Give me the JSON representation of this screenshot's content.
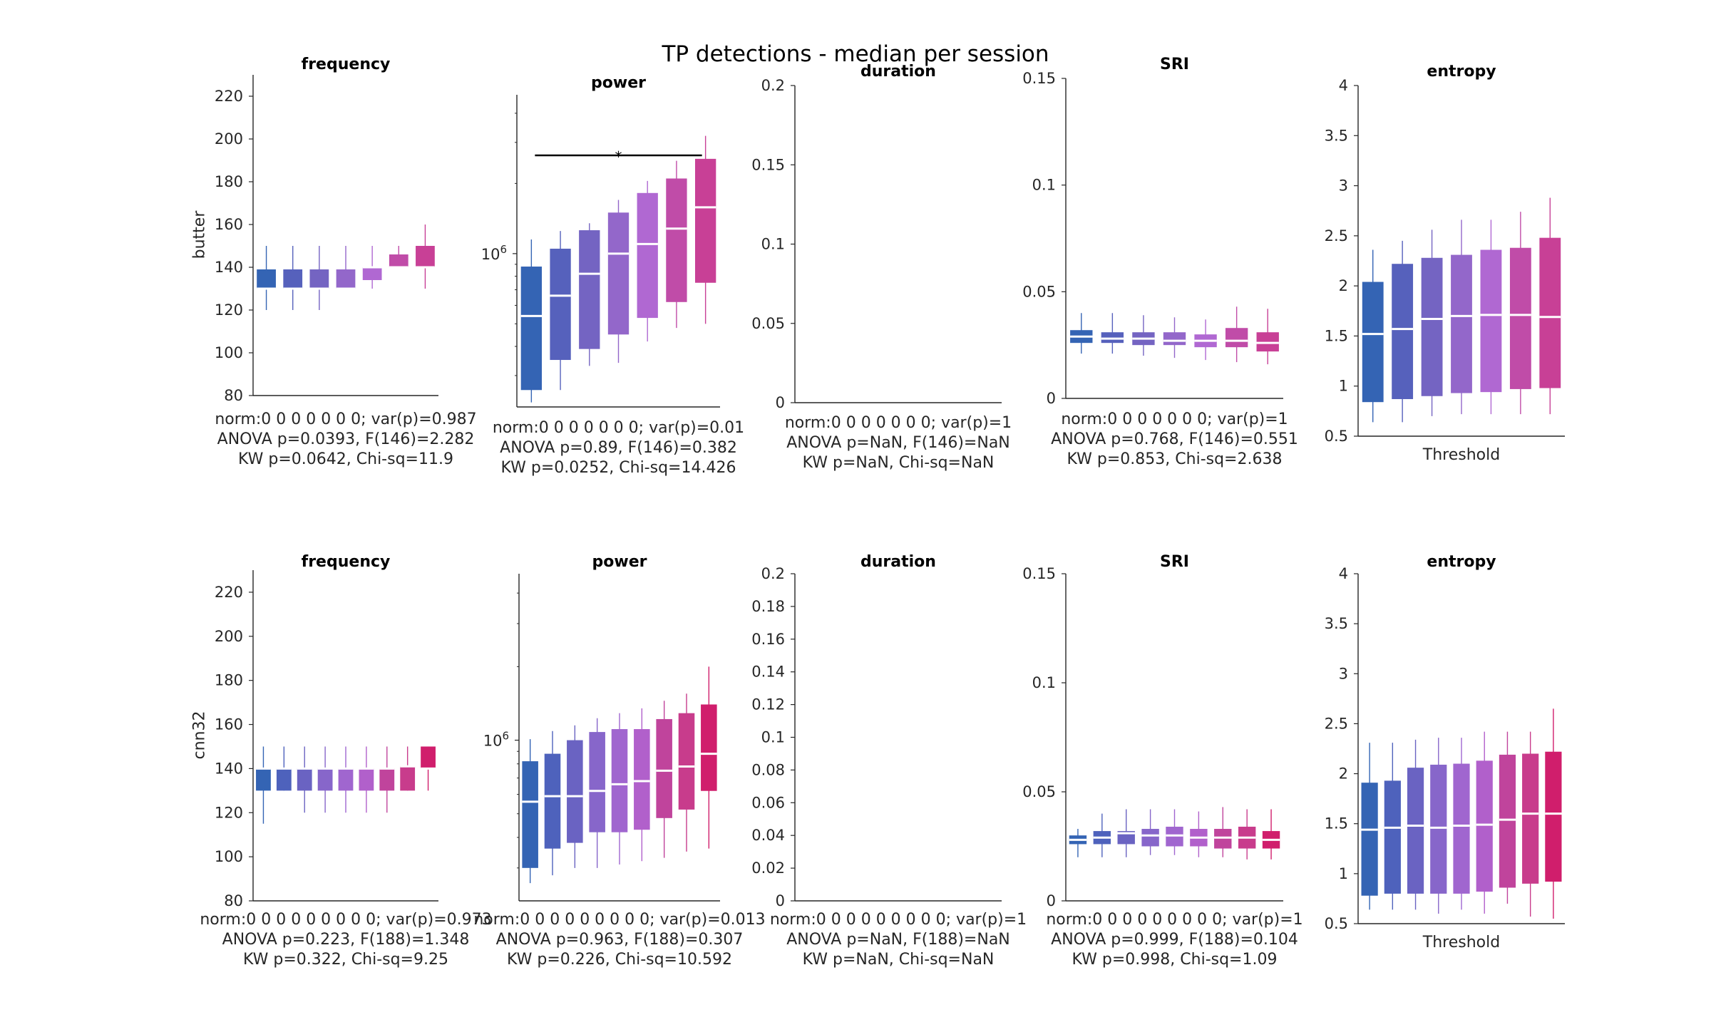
{
  "title": "TP detections - median per session",
  "rows": [
    {
      "label": "butter",
      "panels": [
        {
          "key": "frequency",
          "title": "frequency",
          "stats": [
            "norm:0  0  0  0  0  0  0; var(p)=0.987",
            "ANOVA p=0.0393, F(146)=2.282",
            "KW p=0.0642, Chi-sq=11.9"
          ]
        },
        {
          "key": "power",
          "title": "power",
          "stats": [
            "norm:0  0  0  0  0  0  0; var(p)=0.01",
            "ANOVA p=0.89, F(146)=0.382",
            "KW p=0.0252, Chi-sq=14.426"
          ],
          "significance": "*"
        },
        {
          "key": "duration",
          "title": "duration",
          "stats": [
            "norm:0  0  0  0  0  0  0; var(p)=1",
            "ANOVA p=NaN, F(146)=NaN",
            "KW p=NaN, Chi-sq=NaN"
          ]
        },
        {
          "key": "sri",
          "title": "SRI",
          "stats": [
            "norm:0  0  0  0  0  0  0; var(p)=1",
            "ANOVA p=0.768, F(146)=0.551",
            "KW p=0.853, Chi-sq=2.638"
          ]
        },
        {
          "key": "entropy",
          "title": "entropy",
          "xlabel": "Threshold",
          "stats": []
        }
      ]
    },
    {
      "label": "cnn32",
      "panels": [
        {
          "key": "frequency",
          "title": "frequency",
          "stats": [
            "norm:0  0  0  0  0  0  0  0  0; var(p)=0.973",
            "ANOVA p=0.223, F(188)=1.348",
            "KW p=0.322, Chi-sq=9.25"
          ]
        },
        {
          "key": "power",
          "title": "power",
          "stats": [
            "norm:0  0  0  0  0  0  0  0  0; var(p)=0.013",
            "ANOVA p=0.963, F(188)=0.307",
            "KW p=0.226, Chi-sq=10.592"
          ]
        },
        {
          "key": "duration",
          "title": "duration",
          "stats": [
            "norm:0  0  0  0  0  0  0  0  0; var(p)=1",
            "ANOVA p=NaN, F(188)=NaN",
            "KW p=NaN, Chi-sq=NaN"
          ]
        },
        {
          "key": "sri",
          "title": "SRI",
          "stats": [
            "norm:0  0  0  0  0  0  0  0  0; var(p)=1",
            "ANOVA p=0.999, F(188)=0.104",
            "KW p=0.998, Chi-sq=1.09"
          ]
        },
        {
          "key": "entropy",
          "title": "entropy",
          "xlabel": "Threshold",
          "stats": []
        }
      ]
    }
  ],
  "colors": {
    "butter": [
      "#3464b4",
      "#5661bc",
      "#7464c2",
      "#9367ca",
      "#b068d2",
      "#c04ca8",
      "#c84096"
    ],
    "cnn32": [
      "#3464b4",
      "#4e62bc",
      "#6a63c2",
      "#8766ca",
      "#a066cf",
      "#b160cb",
      "#c0449c",
      "#c83c8c",
      "#d01e6c"
    ],
    "median": "#ffffff"
  },
  "chart_data": [
    {
      "type": "box",
      "row": "butter",
      "panel": "frequency",
      "ylabel": "butter",
      "ylim": [
        80,
        230
      ],
      "yticks": [
        80,
        100,
        120,
        140,
        160,
        180,
        200,
        220
      ],
      "boxes": [
        {
          "whislo": 120,
          "q1": 130,
          "med": 130,
          "q3": 139,
          "whishi": 150
        },
        {
          "whislo": 120,
          "q1": 130,
          "med": 130,
          "q3": 139,
          "whishi": 150
        },
        {
          "whislo": 120,
          "q1": 130,
          "med": 130,
          "q3": 139,
          "whishi": 150
        },
        {
          "whislo": 130,
          "q1": 130,
          "med": 130,
          "q3": 139,
          "whishi": 150
        },
        {
          "whislo": 130,
          "q1": 134,
          "med": 140,
          "q3": 140,
          "whishi": 150
        },
        {
          "whislo": 140,
          "q1": 140,
          "med": 140,
          "q3": 146,
          "whishi": 150
        },
        {
          "whislo": 130,
          "q1": 140,
          "med": 140,
          "q3": 150,
          "whishi": 160
        }
      ]
    },
    {
      "type": "box",
      "row": "butter",
      "panel": "power",
      "scale": "log",
      "ylim": [
        220000,
        4800000
      ],
      "yticklabels": [
        {
          "value": 1000000,
          "label": "10^6"
        }
      ],
      "significance": {
        "from": 0,
        "to": 6,
        "label": "*"
      },
      "boxes": [
        {
          "whislo": 230000,
          "q1": 260000,
          "med": 540000,
          "q3": 880000,
          "whishi": 1150000
        },
        {
          "whislo": 260000,
          "q1": 350000,
          "med": 660000,
          "q3": 1050000,
          "whishi": 1250000
        },
        {
          "whislo": 330000,
          "q1": 390000,
          "med": 820000,
          "q3": 1260000,
          "whishi": 1350000
        },
        {
          "whislo": 340000,
          "q1": 450000,
          "med": 1000000,
          "q3": 1500000,
          "whishi": 1700000
        },
        {
          "whislo": 420000,
          "q1": 530000,
          "med": 1100000,
          "q3": 1820000,
          "whishi": 2050000
        },
        {
          "whislo": 480000,
          "q1": 620000,
          "med": 1280000,
          "q3": 2100000,
          "whishi": 2500000
        },
        {
          "whislo": 500000,
          "q1": 750000,
          "med": 1580000,
          "q3": 2550000,
          "whishi": 3200000
        }
      ]
    },
    {
      "type": "box",
      "row": "butter",
      "panel": "duration",
      "ylim": [
        0,
        0.2
      ],
      "yticks": [
        0,
        0.05,
        0.1,
        0.15,
        0.2
      ],
      "boxes": []
    },
    {
      "type": "box",
      "row": "butter",
      "panel": "sri",
      "ylim": [
        0,
        0.15
      ],
      "yticks": [
        0,
        0.05,
        0.1,
        0.15
      ],
      "boxes": [
        {
          "whislo": 0.021,
          "q1": 0.026,
          "med": 0.029,
          "q3": 0.032,
          "whishi": 0.04
        },
        {
          "whislo": 0.021,
          "q1": 0.026,
          "med": 0.028,
          "q3": 0.031,
          "whishi": 0.04
        },
        {
          "whislo": 0.02,
          "q1": 0.025,
          "med": 0.028,
          "q3": 0.031,
          "whishi": 0.039
        },
        {
          "whislo": 0.019,
          "q1": 0.025,
          "med": 0.027,
          "q3": 0.031,
          "whishi": 0.038
        },
        {
          "whislo": 0.018,
          "q1": 0.024,
          "med": 0.027,
          "q3": 0.03,
          "whishi": 0.037
        },
        {
          "whislo": 0.017,
          "q1": 0.024,
          "med": 0.027,
          "q3": 0.033,
          "whishi": 0.043
        },
        {
          "whislo": 0.016,
          "q1": 0.022,
          "med": 0.026,
          "q3": 0.031,
          "whishi": 0.042
        }
      ]
    },
    {
      "type": "box",
      "row": "butter",
      "panel": "entropy",
      "xlabel": "Threshold",
      "ylim": [
        0.5,
        4
      ],
      "yticks": [
        0.5,
        1,
        1.5,
        2,
        2.5,
        3,
        3.5,
        4
      ],
      "boxes": [
        {
          "whislo": 0.64,
          "q1": 0.84,
          "med": 1.52,
          "q3": 2.04,
          "whishi": 2.36
        },
        {
          "whislo": 0.64,
          "q1": 0.87,
          "med": 1.57,
          "q3": 2.22,
          "whishi": 2.45
        },
        {
          "whislo": 0.7,
          "q1": 0.9,
          "med": 1.67,
          "q3": 2.28,
          "whishi": 2.56
        },
        {
          "whislo": 0.72,
          "q1": 0.93,
          "med": 1.7,
          "q3": 2.31,
          "whishi": 2.66
        },
        {
          "whislo": 0.72,
          "q1": 0.94,
          "med": 1.71,
          "q3": 2.36,
          "whishi": 2.66
        },
        {
          "whislo": 0.72,
          "q1": 0.97,
          "med": 1.71,
          "q3": 2.38,
          "whishi": 2.74
        },
        {
          "whislo": 0.72,
          "q1": 0.98,
          "med": 1.69,
          "q3": 2.48,
          "whishi": 2.88
        }
      ]
    },
    {
      "type": "box",
      "row": "cnn32",
      "panel": "frequency",
      "ylabel": "cnn32",
      "ylim": [
        80,
        230
      ],
      "yticks": [
        80,
        100,
        120,
        140,
        160,
        180,
        200,
        220
      ],
      "boxes": [
        {
          "whislo": 115,
          "q1": 130,
          "med": 140,
          "q3": 140,
          "whishi": 150
        },
        {
          "whislo": 130,
          "q1": 130,
          "med": 140,
          "q3": 140,
          "whishi": 150
        },
        {
          "whislo": 120,
          "q1": 130,
          "med": 140,
          "q3": 140,
          "whishi": 150
        },
        {
          "whislo": 120,
          "q1": 130,
          "med": 140,
          "q3": 140,
          "whishi": 150
        },
        {
          "whislo": 120,
          "q1": 130,
          "med": 140,
          "q3": 140,
          "whishi": 150
        },
        {
          "whislo": 120,
          "q1": 130,
          "med": 140,
          "q3": 140,
          "whishi": 150
        },
        {
          "whislo": 120,
          "q1": 130,
          "med": 140,
          "q3": 140,
          "whishi": 150
        },
        {
          "whislo": 130,
          "q1": 130,
          "med": 141,
          "q3": 141,
          "whishi": 150
        },
        {
          "whislo": 130,
          "q1": 140,
          "med": 140,
          "q3": 150,
          "whishi": 150
        }
      ]
    },
    {
      "type": "box",
      "row": "cnn32",
      "panel": "power",
      "scale": "log",
      "ylim": [
        220000,
        4800000
      ],
      "yticklabels": [
        {
          "value": 1000000,
          "label": "10^6"
        }
      ],
      "boxes": [
        {
          "whislo": 260000,
          "q1": 300000,
          "med": 560000,
          "q3": 820000,
          "whishi": 1010000
        },
        {
          "whislo": 280000,
          "q1": 360000,
          "med": 590000,
          "q3": 880000,
          "whishi": 1090000
        },
        {
          "whislo": 300000,
          "q1": 380000,
          "med": 590000,
          "q3": 1000000,
          "whishi": 1150000
        },
        {
          "whislo": 300000,
          "q1": 420000,
          "med": 620000,
          "q3": 1080000,
          "whishi": 1230000
        },
        {
          "whislo": 310000,
          "q1": 420000,
          "med": 660000,
          "q3": 1110000,
          "whishi": 1290000
        },
        {
          "whislo": 320000,
          "q1": 430000,
          "med": 680000,
          "q3": 1110000,
          "whishi": 1350000
        },
        {
          "whislo": 330000,
          "q1": 480000,
          "med": 750000,
          "q3": 1220000,
          "whishi": 1450000
        },
        {
          "whislo": 350000,
          "q1": 520000,
          "med": 780000,
          "q3": 1290000,
          "whishi": 1550000
        },
        {
          "whislo": 360000,
          "q1": 620000,
          "med": 880000,
          "q3": 1400000,
          "whishi": 2000000
        }
      ]
    },
    {
      "type": "box",
      "row": "cnn32",
      "panel": "duration",
      "ylim": [
        0,
        0.2
      ],
      "yticks": [
        0,
        0.02,
        0.04,
        0.06,
        0.08,
        0.1,
        0.12,
        0.14,
        0.16,
        0.18,
        0.2
      ],
      "boxes": []
    },
    {
      "type": "box",
      "row": "cnn32",
      "panel": "sri",
      "ylim": [
        0,
        0.15
      ],
      "yticks": [
        0,
        0.05,
        0.1,
        0.15
      ],
      "boxes": [
        {
          "whislo": 0.02,
          "q1": 0.026,
          "med": 0.028,
          "q3": 0.03,
          "whishi": 0.033
        },
        {
          "whislo": 0.02,
          "q1": 0.026,
          "med": 0.029,
          "q3": 0.032,
          "whishi": 0.04
        },
        {
          "whislo": 0.02,
          "q1": 0.026,
          "med": 0.031,
          "q3": 0.032,
          "whishi": 0.042
        },
        {
          "whislo": 0.021,
          "q1": 0.025,
          "med": 0.03,
          "q3": 0.033,
          "whishi": 0.042
        },
        {
          "whislo": 0.021,
          "q1": 0.025,
          "med": 0.03,
          "q3": 0.034,
          "whishi": 0.042
        },
        {
          "whislo": 0.02,
          "q1": 0.025,
          "med": 0.029,
          "q3": 0.033,
          "whishi": 0.041
        },
        {
          "whislo": 0.02,
          "q1": 0.024,
          "med": 0.029,
          "q3": 0.033,
          "whishi": 0.043
        },
        {
          "whislo": 0.019,
          "q1": 0.024,
          "med": 0.029,
          "q3": 0.034,
          "whishi": 0.042
        },
        {
          "whislo": 0.019,
          "q1": 0.024,
          "med": 0.028,
          "q3": 0.032,
          "whishi": 0.042
        }
      ]
    },
    {
      "type": "box",
      "row": "cnn32",
      "panel": "entropy",
      "xlabel": "Threshold",
      "ylim": [
        0.5,
        4
      ],
      "yticks": [
        0.5,
        1,
        1.5,
        2,
        2.5,
        3,
        3.5,
        4
      ],
      "boxes": [
        {
          "whislo": 0.64,
          "q1": 0.78,
          "med": 1.44,
          "q3": 1.91,
          "whishi": 2.31
        },
        {
          "whislo": 0.64,
          "q1": 0.8,
          "med": 1.46,
          "q3": 1.93,
          "whishi": 2.31
        },
        {
          "whislo": 0.64,
          "q1": 0.8,
          "med": 1.48,
          "q3": 2.06,
          "whishi": 2.34
        },
        {
          "whislo": 0.6,
          "q1": 0.8,
          "med": 1.46,
          "q3": 2.09,
          "whishi": 2.36
        },
        {
          "whislo": 0.64,
          "q1": 0.8,
          "med": 1.48,
          "q3": 2.1,
          "whishi": 2.36
        },
        {
          "whislo": 0.6,
          "q1": 0.82,
          "med": 1.49,
          "q3": 2.13,
          "whishi": 2.42
        },
        {
          "whislo": 0.7,
          "q1": 0.86,
          "med": 1.54,
          "q3": 2.19,
          "whishi": 2.42
        },
        {
          "whislo": 0.57,
          "q1": 0.9,
          "med": 1.6,
          "q3": 2.2,
          "whishi": 2.42
        },
        {
          "whislo": 0.55,
          "q1": 0.92,
          "med": 1.6,
          "q3": 2.22,
          "whishi": 2.65
        }
      ]
    }
  ]
}
